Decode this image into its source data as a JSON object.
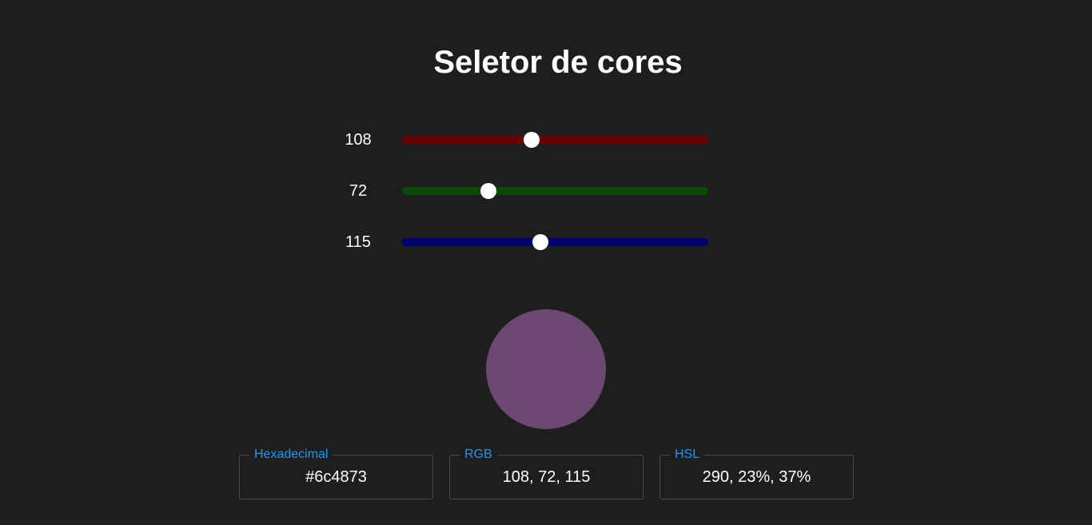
{
  "title": "Seletor de cores",
  "sliders": [
    {
      "channel": "red",
      "value": "108",
      "level": 0.4235,
      "track_color": "#6b0000"
    },
    {
      "channel": "green",
      "value": "72",
      "level": 0.2824,
      "track_color": "#0a4a06"
    },
    {
      "channel": "blue",
      "value": "115",
      "level": 0.451,
      "track_color": "#00006e"
    }
  ],
  "preview": {
    "color": "#6c4873"
  },
  "outputs": {
    "hex": {
      "label": "Hexadecimal",
      "value": "#6c4873"
    },
    "rgb": {
      "label": "RGB",
      "value": "108, 72, 115"
    },
    "hsl": {
      "label": "HSL",
      "value": "290, 23%, 37%"
    }
  },
  "colors": {
    "background": "#1e1e1e",
    "accent": "#2196f3",
    "text": "#ffffff"
  }
}
